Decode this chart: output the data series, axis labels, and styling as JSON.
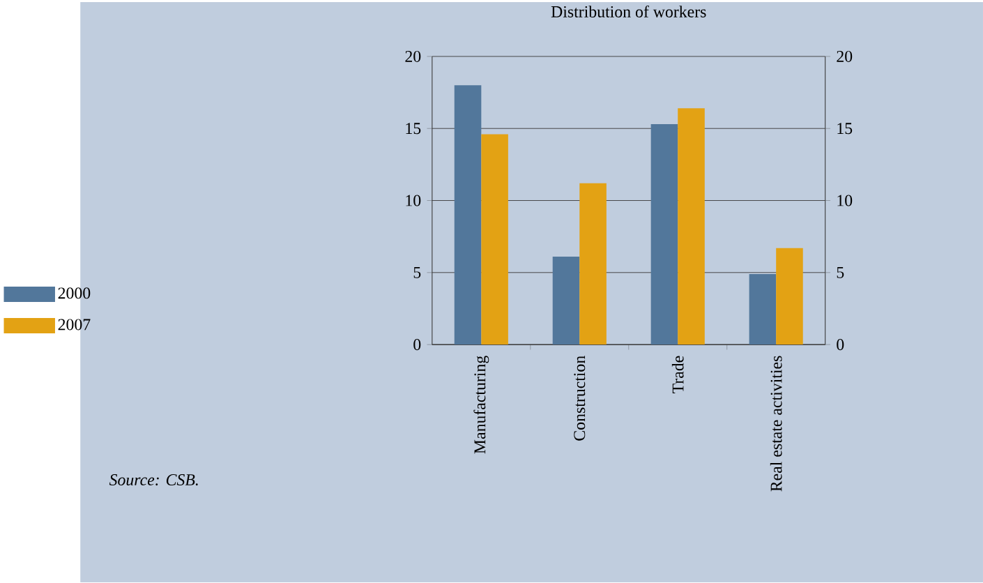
{
  "chart_data": {
    "type": "bar",
    "title": "Distribution of workers",
    "categories": [
      "Manufacturing",
      "Construction",
      "Trade",
      "Real estate activities"
    ],
    "series": [
      {
        "name": "2000",
        "color": "#52779b",
        "values": [
          18.0,
          6.1,
          15.3,
          4.9
        ]
      },
      {
        "name": "2007",
        "color": "#e3a214",
        "values": [
          14.6,
          11.2,
          16.4,
          6.7
        ]
      }
    ],
    "ylim": [
      0,
      20
    ],
    "yticks": [
      0,
      5,
      10,
      15,
      20
    ],
    "y2lim": [
      0,
      20
    ],
    "y2ticks": [
      0,
      5,
      10,
      15,
      20
    ],
    "grid": "y",
    "legend": "left",
    "annotations": [
      "Source: CSB."
    ]
  }
}
